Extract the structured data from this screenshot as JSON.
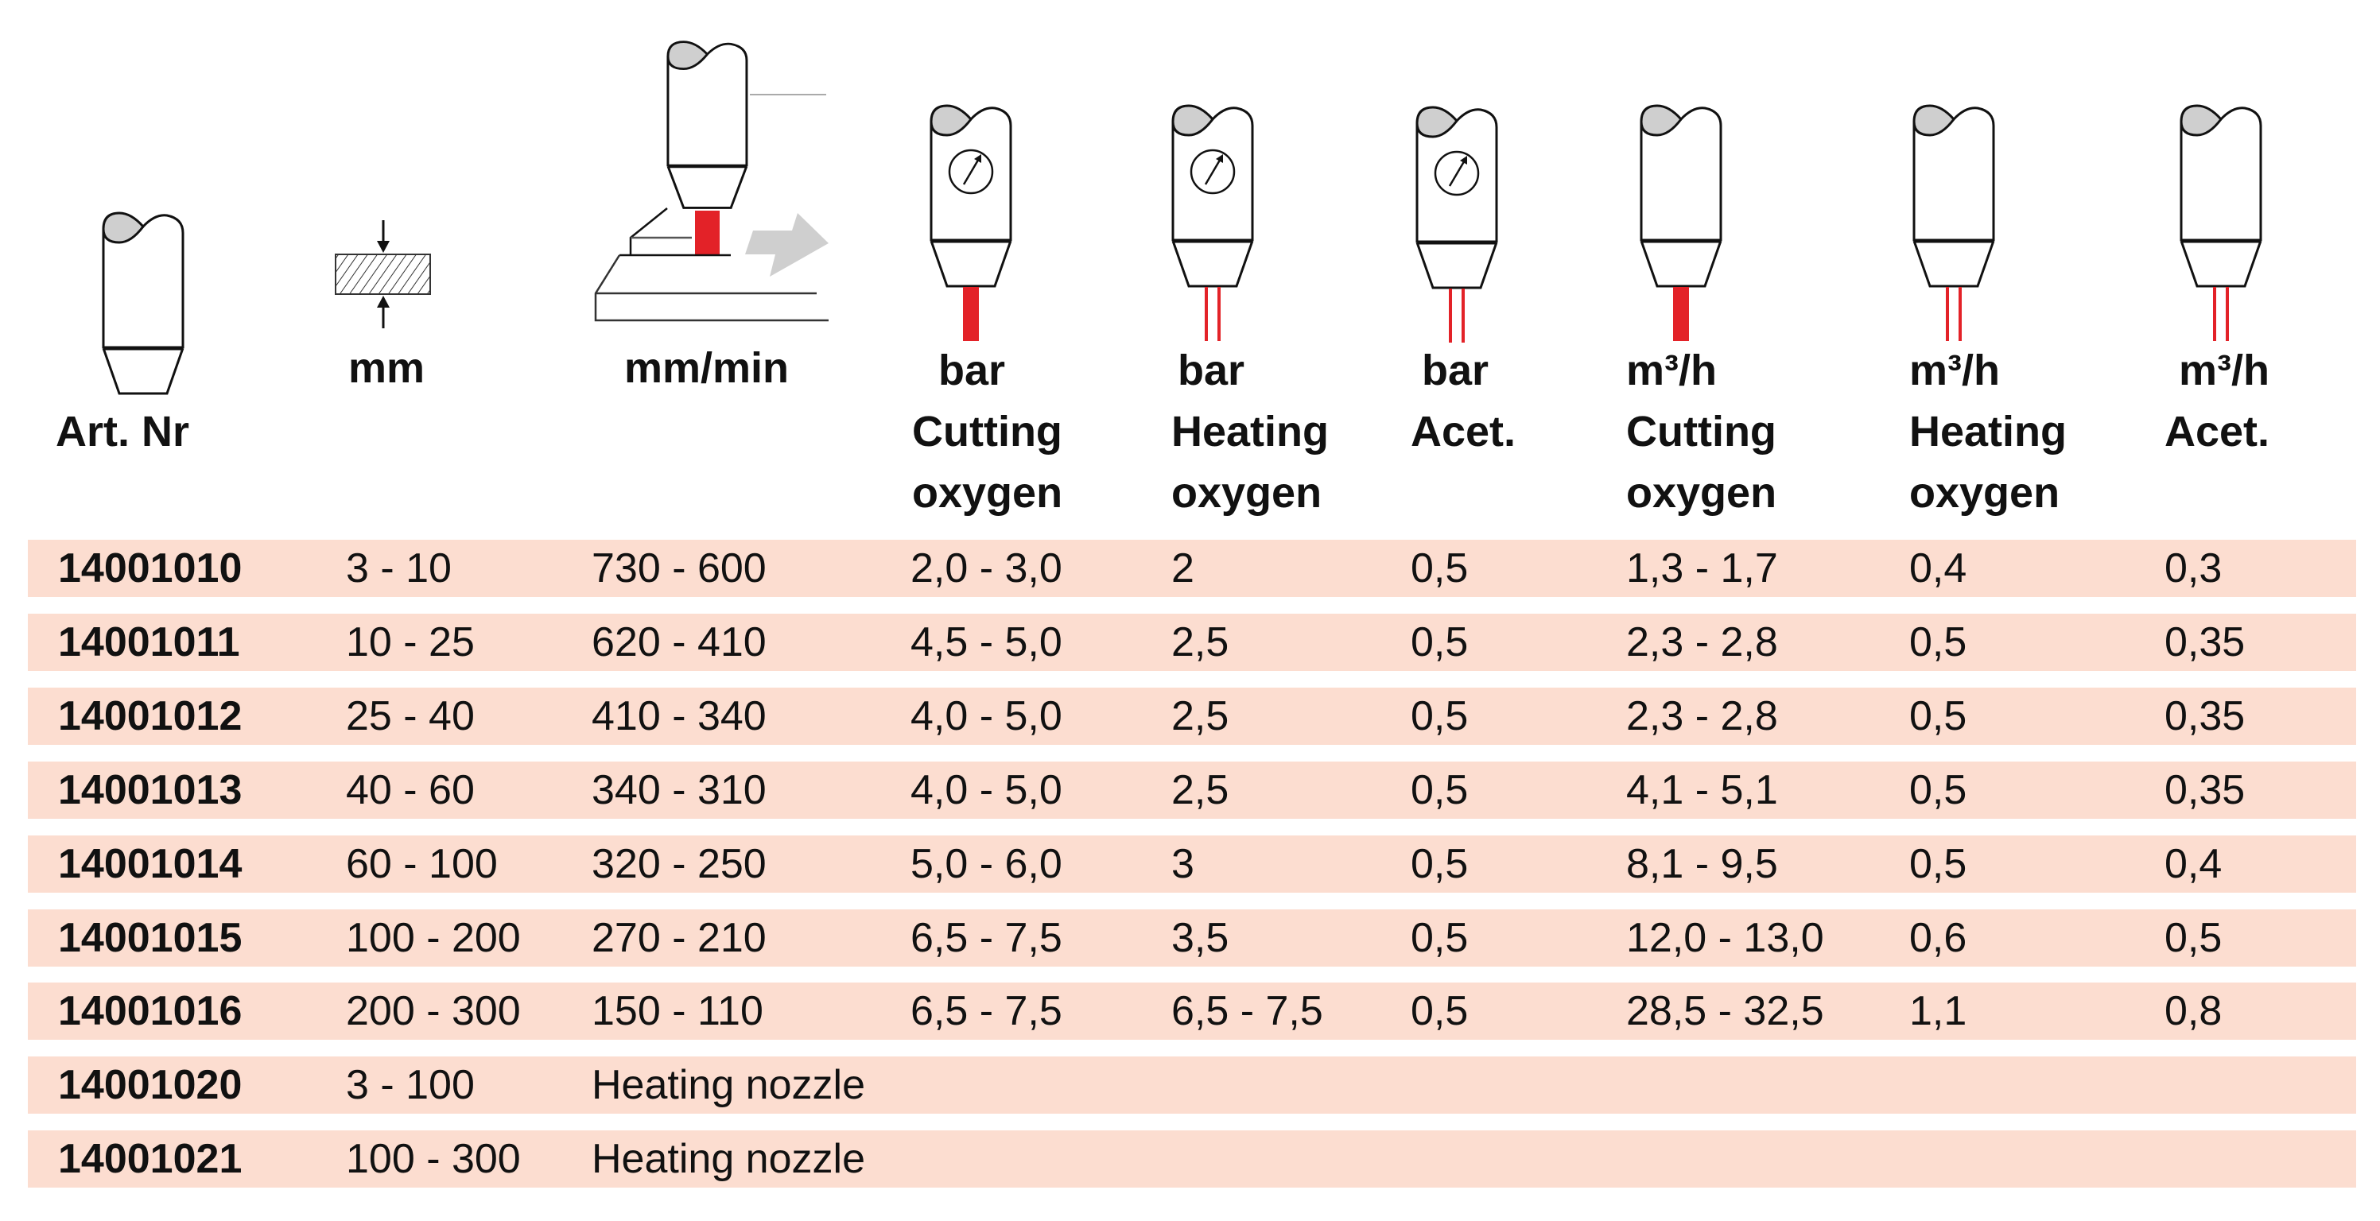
{
  "colors": {
    "row_band": "#fcddd0",
    "flame": "#e32228",
    "cap_grey": "#cfcfcf",
    "text": "#111111"
  },
  "headers": [
    {
      "icon": "torch-nozzle-icon",
      "lines": [
        "Art. Nr"
      ]
    },
    {
      "icon": "material-thickness-icon",
      "lines": [
        "mm"
      ]
    },
    {
      "icon": "cutting-speed-icon",
      "lines": [
        "mm/min"
      ]
    },
    {
      "icon": "torch-gauge-cutting-flame-icon",
      "lines": [
        "bar",
        "Cutting",
        "oxygen"
      ]
    },
    {
      "icon": "torch-gauge-heating-flame-icon",
      "lines": [
        "bar",
        "Heating",
        "oxygen"
      ]
    },
    {
      "icon": "torch-gauge-acetylene-flame-icon",
      "lines": [
        "bar",
        "Acet."
      ]
    },
    {
      "icon": "torch-cutting-flame-icon",
      "lines": [
        "m³/h",
        "Cutting",
        "oxygen"
      ]
    },
    {
      "icon": "torch-heating-flame-icon",
      "lines": [
        "m³/h",
        "Heating",
        "oxygen"
      ]
    },
    {
      "icon": "torch-acetylene-flame-icon",
      "lines": [
        "m³/h",
        "Acet."
      ]
    }
  ],
  "rows": [
    [
      "14001010",
      "3 - 10",
      "730 - 600",
      "2,0 - 3,0",
      "2",
      "0,5",
      "1,3 - 1,7",
      "0,4",
      "0,3"
    ],
    [
      "14001011",
      "10 - 25",
      "620 - 410",
      "4,5 - 5,0",
      "2,5",
      "0,5",
      "2,3 - 2,8",
      "0,5",
      "0,35"
    ],
    [
      "14001012",
      "25 - 40",
      "410 - 340",
      "4,0 - 5,0",
      "2,5",
      "0,5",
      "2,3 - 2,8",
      "0,5",
      "0,35"
    ],
    [
      "14001013",
      "40 - 60",
      "340 - 310",
      "4,0 - 5,0",
      "2,5",
      "0,5",
      "4,1 - 5,1",
      "0,5",
      "0,35"
    ],
    [
      "14001014",
      "60 - 100",
      "320 - 250",
      "5,0 - 6,0",
      "3",
      "0,5",
      "8,1 - 9,5",
      "0,5",
      "0,4"
    ],
    [
      "14001015",
      "100 - 200",
      "270 - 210",
      "6,5 - 7,5",
      "3,5",
      "0,5",
      "12,0 - 13,0",
      "0,6",
      "0,5"
    ],
    [
      "14001016",
      "200 - 300",
      "150 - 110",
      "6,5 - 7,5",
      "6,5 - 7,5",
      "0,5",
      "28,5 - 32,5",
      "1,1",
      "0,8"
    ],
    [
      "14001020",
      "3 - 100",
      "Heating nozzle",
      "",
      "",
      "",
      "",
      "",
      ""
    ],
    [
      "14001021",
      "100 - 300",
      "Heating nozzle",
      "",
      "",
      "",
      "",
      "",
      ""
    ]
  ]
}
